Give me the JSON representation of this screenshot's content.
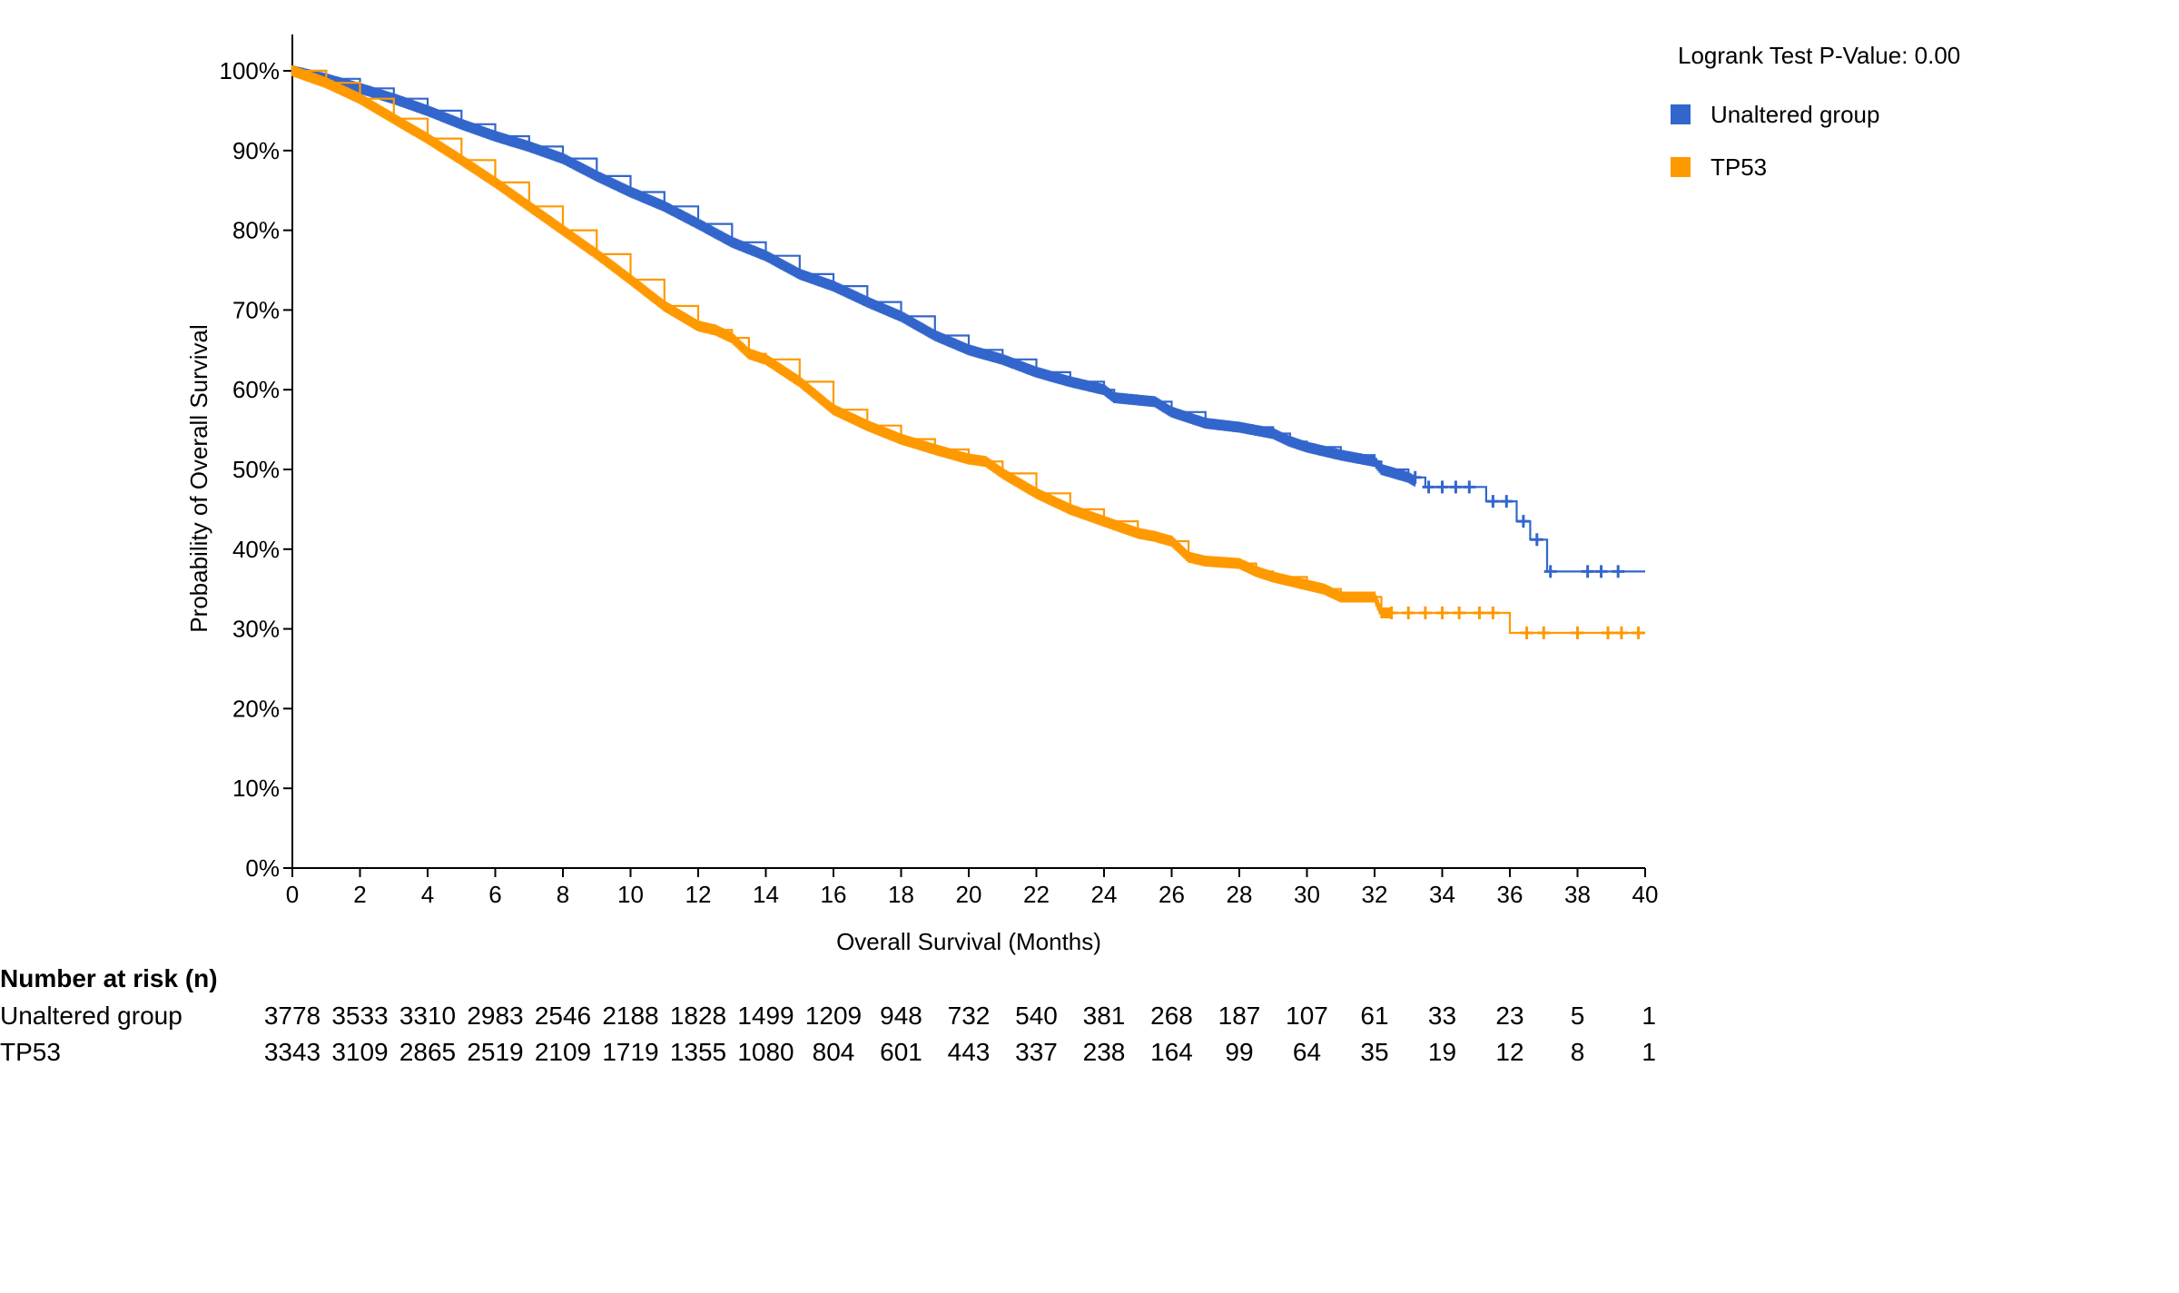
{
  "chart_data": {
    "type": "line",
    "subtype": "kaplan-meier",
    "title": "",
    "xlabel": "Overall Survival (Months)",
    "ylabel": "Probability of Overall Survival",
    "xlim": [
      0,
      40
    ],
    "ylim": [
      0,
      100
    ],
    "x_ticks": [
      0,
      2,
      4,
      6,
      8,
      10,
      12,
      14,
      16,
      18,
      20,
      22,
      24,
      26,
      28,
      30,
      32,
      34,
      36,
      38,
      40
    ],
    "y_ticks": [
      0,
      10,
      20,
      30,
      40,
      50,
      60,
      70,
      80,
      90,
      100
    ],
    "y_tick_suffix": "%",
    "grid": false,
    "legend_position": "top-right",
    "annotation": "Logrank Test P-Value: 0.00",
    "series": [
      {
        "name": "Unaltered group",
        "color": "#3366cc",
        "points": [
          [
            0,
            100
          ],
          [
            1,
            99
          ],
          [
            2,
            97.8
          ],
          [
            3,
            96.5
          ],
          [
            4,
            95
          ],
          [
            5,
            93.3
          ],
          [
            6,
            91.8
          ],
          [
            7,
            90.5
          ],
          [
            8,
            89
          ],
          [
            9,
            86.8
          ],
          [
            10,
            84.8
          ],
          [
            11,
            83
          ],
          [
            12,
            80.8
          ],
          [
            13,
            78.5
          ],
          [
            14,
            76.8
          ],
          [
            15,
            74.5
          ],
          [
            16,
            73
          ],
          [
            17,
            71
          ],
          [
            18,
            69.2
          ],
          [
            19,
            66.8
          ],
          [
            20,
            65
          ],
          [
            21,
            63.8
          ],
          [
            22,
            62.2
          ],
          [
            23,
            61
          ],
          [
            24,
            60
          ],
          [
            24.3,
            59
          ],
          [
            25.5,
            58.5
          ],
          [
            26,
            57.2
          ],
          [
            27,
            55.8
          ],
          [
            28,
            55.3
          ],
          [
            29,
            54.5
          ],
          [
            29.5,
            53.5
          ],
          [
            30,
            52.8
          ],
          [
            31,
            51.8
          ],
          [
            32,
            51
          ],
          [
            32.2,
            50
          ],
          [
            33,
            49
          ],
          [
            33.5,
            47.8
          ],
          [
            35.2,
            47.8
          ],
          [
            35.3,
            46
          ],
          [
            36,
            46
          ],
          [
            36.2,
            43.5
          ],
          [
            36.5,
            43.5
          ],
          [
            36.6,
            41.2
          ],
          [
            37,
            41.2
          ],
          [
            37.1,
            37.2
          ],
          [
            40,
            37.2
          ]
        ],
        "censor_marks": [
          [
            33.2,
            49
          ],
          [
            33.6,
            47.8
          ],
          [
            34,
            47.8
          ],
          [
            34.4,
            47.8
          ],
          [
            34.8,
            47.8
          ],
          [
            35.5,
            46
          ],
          [
            35.9,
            46
          ],
          [
            36.4,
            43.5
          ],
          [
            36.8,
            41.2
          ],
          [
            37.2,
            37.2
          ],
          [
            38.3,
            37.2
          ],
          [
            38.7,
            37.2
          ],
          [
            39.2,
            37.2
          ]
        ]
      },
      {
        "name": "TP53",
        "color": "#ff9900",
        "points": [
          [
            0,
            100
          ],
          [
            1,
            98.5
          ],
          [
            2,
            96.5
          ],
          [
            3,
            94
          ],
          [
            4,
            91.5
          ],
          [
            5,
            88.8
          ],
          [
            6,
            86
          ],
          [
            7,
            83
          ],
          [
            8,
            80
          ],
          [
            9,
            77
          ],
          [
            10,
            73.8
          ],
          [
            11,
            70.5
          ],
          [
            12,
            68
          ],
          [
            12.5,
            67.5
          ],
          [
            13,
            66.5
          ],
          [
            13.5,
            64.5
          ],
          [
            14,
            63.8
          ],
          [
            15,
            61
          ],
          [
            16,
            57.5
          ],
          [
            17,
            55.5
          ],
          [
            18,
            53.8
          ],
          [
            19,
            52.5
          ],
          [
            20,
            51.3
          ],
          [
            20.5,
            51
          ],
          [
            21,
            49.5
          ],
          [
            22,
            47
          ],
          [
            23,
            45
          ],
          [
            24,
            43.5
          ],
          [
            25,
            42
          ],
          [
            25.5,
            41.6
          ],
          [
            26,
            41
          ],
          [
            26.5,
            39
          ],
          [
            27,
            38.5
          ],
          [
            28,
            38.2
          ],
          [
            28.5,
            37.2
          ],
          [
            29,
            36.5
          ],
          [
            30,
            35.5
          ],
          [
            30.5,
            35
          ],
          [
            31,
            34
          ],
          [
            32,
            34
          ],
          [
            32.2,
            32
          ],
          [
            35.8,
            32
          ],
          [
            36,
            29.5
          ],
          [
            40,
            29.5
          ]
        ],
        "censor_marks": [
          [
            32.5,
            32
          ],
          [
            33,
            32
          ],
          [
            33.5,
            32
          ],
          [
            34,
            32
          ],
          [
            34.5,
            32
          ],
          [
            35.1,
            32
          ],
          [
            35.5,
            32
          ],
          [
            36.5,
            29.5
          ],
          [
            37,
            29.5
          ],
          [
            38,
            29.5
          ],
          [
            38.9,
            29.5
          ],
          [
            39.3,
            29.5
          ],
          [
            39.8,
            29.5
          ]
        ]
      }
    ],
    "risk_table": {
      "title": "Number at risk (n)",
      "times": [
        0,
        2,
        4,
        6,
        8,
        10,
        12,
        14,
        16,
        18,
        20,
        22,
        24,
        26,
        28,
        30,
        32,
        34,
        36,
        38,
        40
      ],
      "rows": [
        {
          "name": "Unaltered group",
          "values": [
            3778,
            3533,
            3310,
            2983,
            2546,
            2188,
            1828,
            1499,
            1209,
            948,
            732,
            540,
            381,
            268,
            187,
            107,
            61,
            33,
            23,
            5,
            1
          ]
        },
        {
          "name": "TP53",
          "values": [
            3343,
            3109,
            2865,
            2519,
            2109,
            1719,
            1355,
            1080,
            804,
            601,
            443,
            337,
            238,
            164,
            99,
            64,
            35,
            19,
            12,
            8,
            1
          ]
        }
      ]
    }
  }
}
